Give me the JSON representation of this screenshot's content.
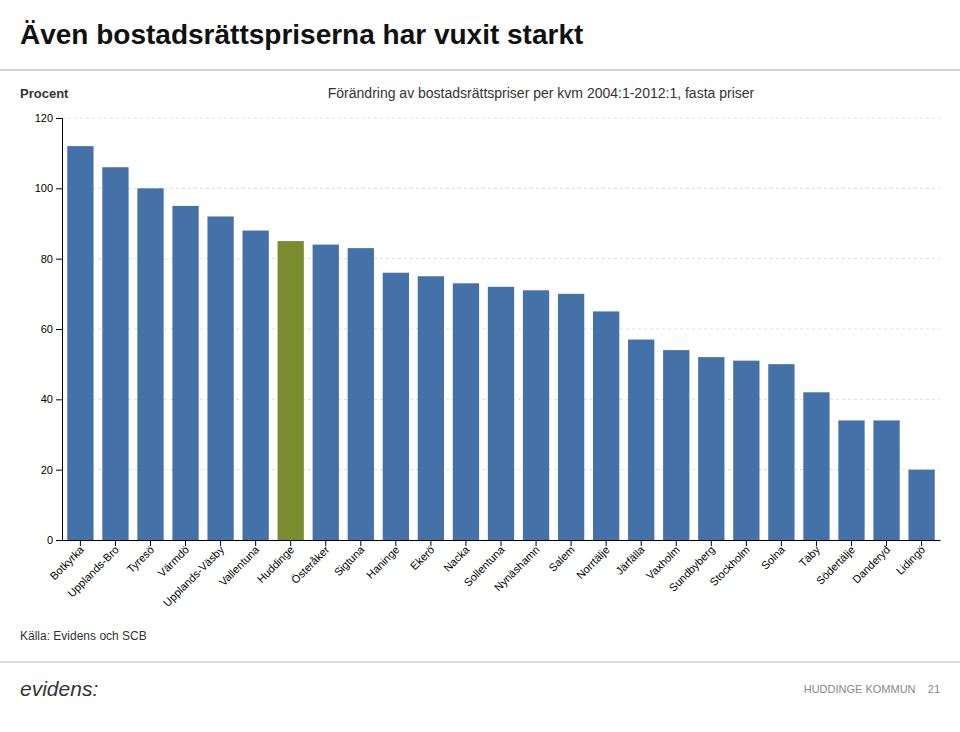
{
  "chart_data": {
    "type": "bar",
    "title": "Även bostadsrättspriserna har vuxit starkt",
    "subtitle": "Förändring av bostadsrättspriser per kvm 2004:1-2012:1, fasta priser",
    "ylabel": "Procent",
    "source": "Källa: Evidens och SCB",
    "annotations": [
      "evidens:",
      "HUDDINGE KOMMUN    21"
    ],
    "categories": [
      "Botkyrka",
      "Upplands-Bro",
      "Tyresö",
      "Värmdö",
      "Upplands-Väsby",
      "Vallentuna",
      "Huddinge",
      "Österåker",
      "Sigtuna",
      "Haninge",
      "Ekerö",
      "Nacka",
      "Sollentuna",
      "Nynäshamn",
      "Salem",
      "Norrtälje",
      "Järfälla",
      "Vaxholm",
      "Sundbyberg",
      "Stockholm",
      "Solna",
      "Täby",
      "Södertälje",
      "Danderyd",
      "Lidingö"
    ],
    "values": [
      112,
      106,
      100,
      95,
      92,
      88,
      85,
      84,
      83,
      76,
      75,
      73,
      72,
      71,
      70,
      65,
      57,
      54,
      52,
      51,
      50,
      42,
      34,
      34,
      20
    ],
    "colors": [
      "#4472a8",
      "#4472a8",
      "#4472a8",
      "#4472a8",
      "#4472a8",
      "#4472a8",
      "#7a8c2e",
      "#4472a8",
      "#4472a8",
      "#4472a8",
      "#4472a8",
      "#4472a8",
      "#4472a8",
      "#4472a8",
      "#4472a8",
      "#4472a8",
      "#4472a8",
      "#4472a8",
      "#4472a8",
      "#4472a8",
      "#4472a8",
      "#4472a8",
      "#4472a8",
      "#4472a8",
      "#4472a8"
    ],
    "ylim": [
      0,
      120
    ],
    "yticks": [
      0,
      20,
      40,
      60,
      80,
      100,
      120
    ],
    "grid": true
  }
}
